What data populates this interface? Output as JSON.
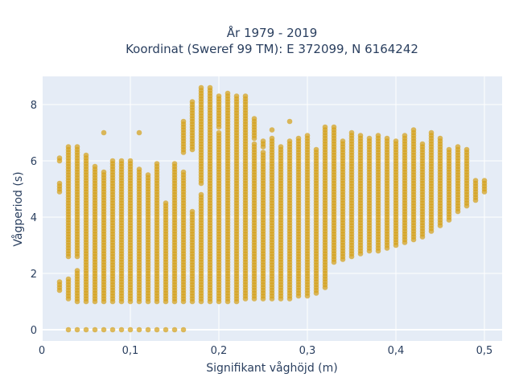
{
  "chart_data": {
    "type": "scatter",
    "title": "År 1979 - 2019",
    "subtitle": "Koordinat (Sweref 99 TM): E 372099, N 6164242",
    "xlabel": "Signifikant våghöjd (m)",
    "ylabel": "Vågperiod (s)",
    "xlim": [
      0,
      0.52
    ],
    "ylim": [
      -0.4,
      9.0
    ],
    "x_ticks": [
      0,
      0.1,
      0.2,
      0.3,
      0.4,
      0.5
    ],
    "x_tick_labels": [
      "0",
      "0,1",
      "0,2",
      "0,3",
      "0,4",
      "0,5"
    ],
    "y_ticks": [
      0,
      2,
      4,
      6,
      8
    ],
    "y_tick_labels": [
      "0",
      "2",
      "4",
      "6",
      "8"
    ],
    "grid": true,
    "colors": {
      "plot_bg": "#e5ecf6",
      "marker": "#d4a017"
    },
    "columns": [
      {
        "x": 0.02,
        "lo": 1.4,
        "hi": 1.7
      },
      {
        "x": 0.02,
        "lo": 4.9,
        "hi": 5.2
      },
      {
        "x": 0.02,
        "lo": 6.0,
        "hi": 6.1
      },
      {
        "x": 0.03,
        "lo": 0.0,
        "hi": 0.0
      },
      {
        "x": 0.03,
        "lo": 1.1,
        "hi": 1.8
      },
      {
        "x": 0.03,
        "lo": 2.6,
        "hi": 6.5
      },
      {
        "x": 0.04,
        "lo": 0.0,
        "hi": 0.0
      },
      {
        "x": 0.04,
        "lo": 1.0,
        "hi": 2.1
      },
      {
        "x": 0.04,
        "lo": 2.6,
        "hi": 6.5
      },
      {
        "x": 0.05,
        "lo": 0.0,
        "hi": 0.0
      },
      {
        "x": 0.05,
        "lo": 1.0,
        "hi": 2.9
      },
      {
        "x": 0.05,
        "lo": 3.0,
        "hi": 6.2
      },
      {
        "x": 0.06,
        "lo": 0.0,
        "hi": 0.0
      },
      {
        "x": 0.06,
        "lo": 1.0,
        "hi": 5.8
      },
      {
        "x": 0.07,
        "lo": 0.0,
        "hi": 0.0
      },
      {
        "x": 0.07,
        "lo": 1.0,
        "hi": 5.6
      },
      {
        "x": 0.07,
        "lo": 7.0,
        "hi": 7.0
      },
      {
        "x": 0.08,
        "lo": 0.0,
        "hi": 0.0
      },
      {
        "x": 0.08,
        "lo": 1.0,
        "hi": 6.0
      },
      {
        "x": 0.09,
        "lo": 0.0,
        "hi": 0.0
      },
      {
        "x": 0.09,
        "lo": 1.0,
        "hi": 6.0
      },
      {
        "x": 0.1,
        "lo": 0.0,
        "hi": 0.0
      },
      {
        "x": 0.1,
        "lo": 1.0,
        "hi": 6.0
      },
      {
        "x": 0.11,
        "lo": 0.0,
        "hi": 0.0
      },
      {
        "x": 0.11,
        "lo": 1.0,
        "hi": 5.7
      },
      {
        "x": 0.11,
        "lo": 7.0,
        "hi": 7.0
      },
      {
        "x": 0.12,
        "lo": 0.0,
        "hi": 0.0
      },
      {
        "x": 0.12,
        "lo": 1.0,
        "hi": 5.5
      },
      {
        "x": 0.13,
        "lo": 0.0,
        "hi": 0.0
      },
      {
        "x": 0.13,
        "lo": 1.0,
        "hi": 5.9
      },
      {
        "x": 0.14,
        "lo": 0.0,
        "hi": 0.0
      },
      {
        "x": 0.14,
        "lo": 1.0,
        "hi": 4.5
      },
      {
        "x": 0.15,
        "lo": 0.0,
        "hi": 0.0
      },
      {
        "x": 0.15,
        "lo": 1.0,
        "hi": 5.9
      },
      {
        "x": 0.16,
        "lo": 0.0,
        "hi": 0.0
      },
      {
        "x": 0.16,
        "lo": 1.0,
        "hi": 5.6
      },
      {
        "x": 0.16,
        "lo": 6.3,
        "hi": 7.4
      },
      {
        "x": 0.17,
        "lo": 1.0,
        "hi": 4.2
      },
      {
        "x": 0.17,
        "lo": 6.4,
        "hi": 8.1
      },
      {
        "x": 0.18,
        "lo": 1.0,
        "hi": 4.8
      },
      {
        "x": 0.18,
        "lo": 5.2,
        "hi": 8.6
      },
      {
        "x": 0.19,
        "lo": 1.0,
        "hi": 5.6
      },
      {
        "x": 0.19,
        "lo": 5.7,
        "hi": 8.6
      },
      {
        "x": 0.2,
        "lo": 1.0,
        "hi": 7.0
      },
      {
        "x": 0.2,
        "lo": 7.2,
        "hi": 8.3
      },
      {
        "x": 0.21,
        "lo": 1.0,
        "hi": 8.4
      },
      {
        "x": 0.22,
        "lo": 1.0,
        "hi": 8.3
      },
      {
        "x": 0.23,
        "lo": 1.1,
        "hi": 8.3
      },
      {
        "x": 0.24,
        "lo": 1.1,
        "hi": 6.6
      },
      {
        "x": 0.24,
        "lo": 6.8,
        "hi": 7.5
      },
      {
        "x": 0.25,
        "lo": 1.1,
        "hi": 6.3
      },
      {
        "x": 0.25,
        "lo": 6.5,
        "hi": 6.7
      },
      {
        "x": 0.26,
        "lo": 1.1,
        "hi": 6.8
      },
      {
        "x": 0.26,
        "lo": 7.1,
        "hi": 7.1
      },
      {
        "x": 0.27,
        "lo": 1.1,
        "hi": 6.5
      },
      {
        "x": 0.28,
        "lo": 1.1,
        "hi": 6.7
      },
      {
        "x": 0.28,
        "lo": 7.4,
        "hi": 7.4
      },
      {
        "x": 0.29,
        "lo": 1.2,
        "hi": 6.8
      },
      {
        "x": 0.3,
        "lo": 1.2,
        "hi": 6.9
      },
      {
        "x": 0.31,
        "lo": 1.3,
        "hi": 6.4
      },
      {
        "x": 0.32,
        "lo": 1.5,
        "hi": 7.2
      },
      {
        "x": 0.33,
        "lo": 2.4,
        "hi": 7.2
      },
      {
        "x": 0.34,
        "lo": 2.5,
        "hi": 6.7
      },
      {
        "x": 0.35,
        "lo": 2.6,
        "hi": 7.0
      },
      {
        "x": 0.36,
        "lo": 2.7,
        "hi": 6.9
      },
      {
        "x": 0.37,
        "lo": 2.8,
        "hi": 6.8
      },
      {
        "x": 0.38,
        "lo": 2.8,
        "hi": 6.9
      },
      {
        "x": 0.39,
        "lo": 2.9,
        "hi": 6.8
      },
      {
        "x": 0.4,
        "lo": 3.0,
        "hi": 6.7
      },
      {
        "x": 0.41,
        "lo": 3.1,
        "hi": 6.9
      },
      {
        "x": 0.42,
        "lo": 3.2,
        "hi": 7.1
      },
      {
        "x": 0.43,
        "lo": 3.3,
        "hi": 6.6
      },
      {
        "x": 0.44,
        "lo": 3.5,
        "hi": 7.0
      },
      {
        "x": 0.45,
        "lo": 3.7,
        "hi": 6.8
      },
      {
        "x": 0.46,
        "lo": 3.9,
        "hi": 6.4
      },
      {
        "x": 0.47,
        "lo": 4.2,
        "hi": 6.5
      },
      {
        "x": 0.48,
        "lo": 4.4,
        "hi": 6.4
      },
      {
        "x": 0.49,
        "lo": 4.6,
        "hi": 5.3
      },
      {
        "x": 0.5,
        "lo": 4.9,
        "hi": 5.3
      }
    ],
    "column_step": 0.1
  }
}
